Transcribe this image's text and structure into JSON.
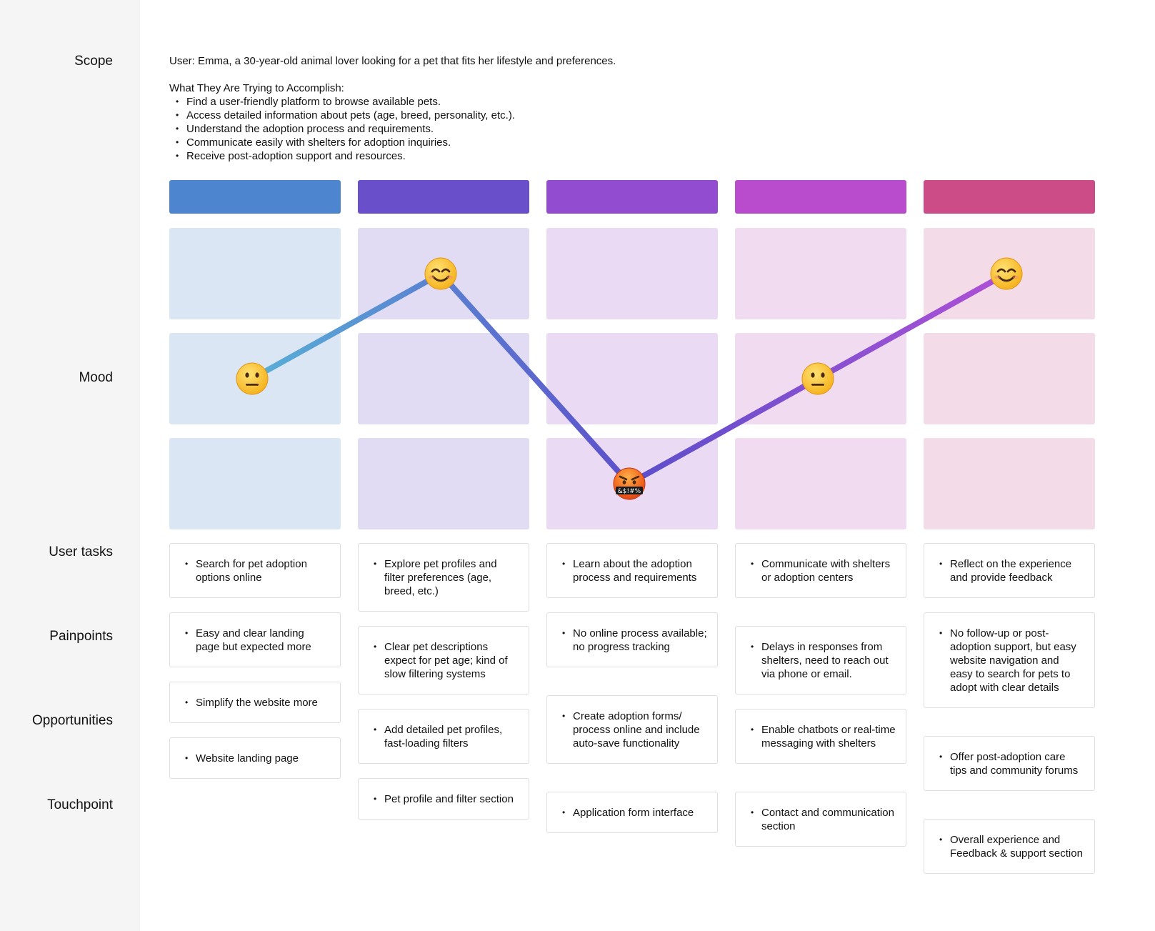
{
  "row_labels": {
    "scope": "Scope",
    "mood": "Mood",
    "user_tasks": "User tasks",
    "painpoints": "Painpoints",
    "opportunities": "Opportunities",
    "touchpoint": "Touchpoint"
  },
  "scope": {
    "user": "User: Emma, a 30-year-old animal lover looking for a pet that fits her lifestyle and preferences.",
    "heading": "What They Are Trying to Accomplish:",
    "goals": [
      "Find a user-friendly platform to browse available pets.",
      "Access detailed information about pets (age, breed, personality, etc.).",
      "Understand the adoption process and requirements.",
      "Communicate easily with shelters for adoption inquiries.",
      "Receive post-adoption support and resources."
    ]
  },
  "colors": {
    "stage_headers": [
      "#4d86cf",
      "#6a4fcb",
      "#924ccf",
      "#b84ccd",
      "#cc4c88"
    ],
    "mood_cells": [
      "#dbe6f5",
      "#e1dcf3",
      "#ebdaf3",
      "#f0dbf0",
      "#f3dbe8"
    ],
    "line_start": "#58b0d6",
    "line_mid": "#5c4fcb",
    "line_end": "#b050d6"
  },
  "mood": {
    "levels": [
      "happy",
      "neutral",
      "angry"
    ],
    "points": [
      {
        "stage": 1,
        "emotion": "neutral",
        "icon": "neutral-face-icon"
      },
      {
        "stage": 2,
        "emotion": "happy",
        "icon": "smiling-face-icon"
      },
      {
        "stage": 3,
        "emotion": "angry",
        "icon": "cursing-face-icon"
      },
      {
        "stage": 4,
        "emotion": "neutral",
        "icon": "neutral-face-icon"
      },
      {
        "stage": 5,
        "emotion": "happy",
        "icon": "smiling-face-icon"
      }
    ]
  },
  "stages": [
    {
      "user_task": "Search for pet adoption options online",
      "painpoint": "Easy and clear landing page but expected more",
      "opportunity": "Simplify the website more",
      "touchpoint": "Website landing page"
    },
    {
      "user_task": "Explore pet profiles and filter preferences (age, breed, etc.)",
      "painpoint": "Clear pet descriptions expect for pet age; kind of slow filtering systems",
      "opportunity": "Add detailed pet profiles, fast-loading filters",
      "touchpoint": "Pet profile and filter section"
    },
    {
      "user_task": "Learn about the adoption process and requirements",
      "painpoint": "No online process available; no progress tracking",
      "opportunity": "Create adoption forms/ process online and include auto-save functionality",
      "touchpoint": "Application form interface"
    },
    {
      "user_task": "Communicate with shelters or adoption centers",
      "painpoint": "Delays in responses from shelters, need to reach out via phone or email.",
      "opportunity": "Enable chatbots or real-time messaging with shelters",
      "touchpoint": "Contact and communication section"
    },
    {
      "user_task": "Reflect on the experience and provide feedback",
      "painpoint": "No follow-up or post-adoption support, but easy website navigation and easy to search for pets to adopt with clear details",
      "opportunity": "Offer post-adoption care tips and community forums",
      "touchpoint": "Overall experience and Feedback & support section"
    }
  ]
}
